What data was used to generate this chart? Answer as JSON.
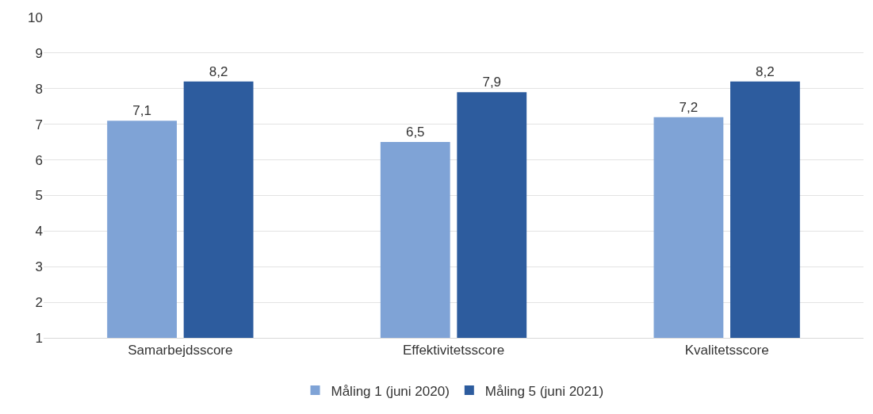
{
  "chart_data": {
    "type": "bar",
    "categories": [
      "Samarbejdsscore",
      "Effektivitetsscore",
      "Kvalitetsscore"
    ],
    "series": [
      {
        "name": "Måling 1 (juni 2020)",
        "color": "#7fa3d6",
        "values": [
          7.1,
          6.5,
          7.2
        ],
        "value_labels": [
          "7,1",
          "6,5",
          "7,2"
        ]
      },
      {
        "name": "Måling 5 (juni 2021)",
        "color": "#2d5c9e",
        "values": [
          8.2,
          7.9,
          8.2
        ],
        "value_labels": [
          "8,2",
          "7,9",
          "8,2"
        ]
      }
    ],
    "ylim": [
      1,
      10
    ],
    "yticks": [
      1,
      2,
      3,
      4,
      5,
      6,
      7,
      8,
      9,
      10
    ],
    "grid": "y",
    "legend": "bottom"
  }
}
